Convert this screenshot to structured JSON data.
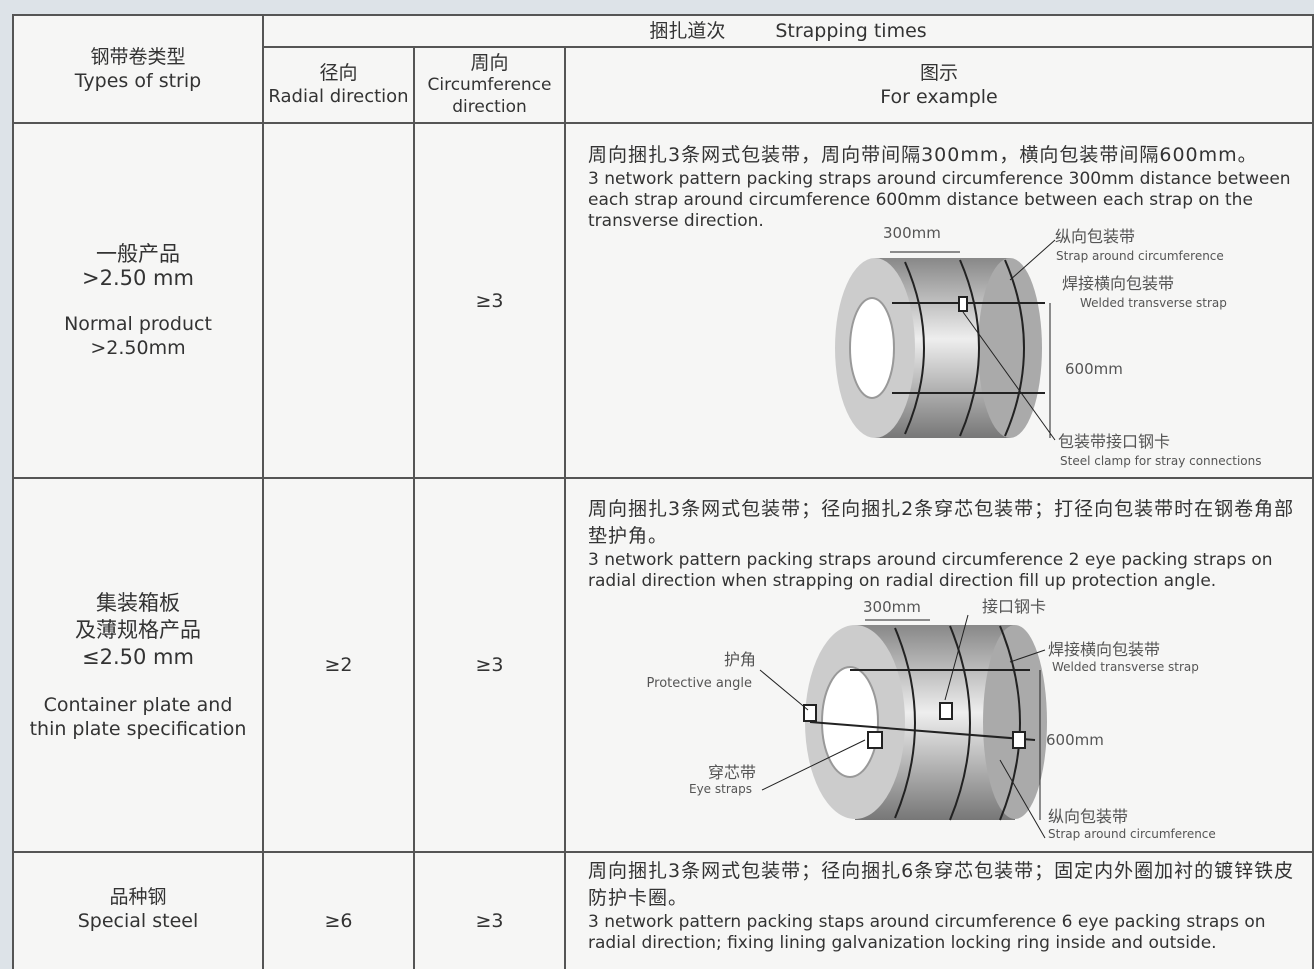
{
  "table": {
    "header": {
      "type_zh": "钢带卷类型",
      "type_en": "Types of strip",
      "strap_zh": "捆扎道次",
      "strap_en": "Strapping times",
      "radial_zh": "径向",
      "radial_en": "Radial direction",
      "circ_zh": "周向",
      "circ_en": "Circumference direction",
      "example_zh": "图示",
      "example_en": "For example"
    },
    "rows": [
      {
        "type": [
          "一般产品",
          ">2.50 mm",
          "Normal product",
          ">2.50mm"
        ],
        "circ": "≥3",
        "desc_zh": "周向捆扎3条网式包装带，周向带间隔300mm，横向包装带间隔600mm。",
        "desc_en": "3 network pattern packing straps around circumference 300mm distance between each strap around circumference 600mm distance between each strap on the transverse direction.",
        "labels": [
          "300mm",
          "纵向包装带",
          "Strap around circumference",
          "焊接横向包装带",
          "Welded transverse strap",
          "600mm",
          "包装带接口钢卡",
          "Steel clamp for stray connections"
        ]
      },
      {
        "type": [
          "集装箱板",
          "及薄规格产品",
          "≤2.50 mm",
          "Container plate and",
          "thin plate specification"
        ],
        "radial": "≥2",
        "circ": "≥3",
        "desc_zh": "周向捆扎3条网式包装带；径向捆扎2条穿芯包装带；打径向包装带时在钢卷角部垫护角。",
        "desc_en": "3 network pattern packing straps around circumference 2 eye packing straps on radial direction when strapping on radial direction fill up protection angle.",
        "labels": [
          "300mm",
          "接口钢卡",
          "护角",
          "Protective angle",
          "焊接横向包装带",
          "Welded transverse strap",
          "600mm",
          "穿芯带",
          "Eye straps",
          "纵向包装带",
          "Strap around circumference"
        ]
      },
      {
        "type": [
          "品种钢",
          "Special steel"
        ],
        "radial": "≥6",
        "circ": "≥3",
        "desc_zh": "周向捆扎3条网式包装带；径向捆扎6条穿芯包装带；固定内外圈加衬的镀锌铁皮防护卡圈。",
        "desc_en": "3 network pattern packing staps around circumference 6 eye packing straps on radial direction; fixing lining galvanization locking ring inside and outside."
      }
    ]
  }
}
